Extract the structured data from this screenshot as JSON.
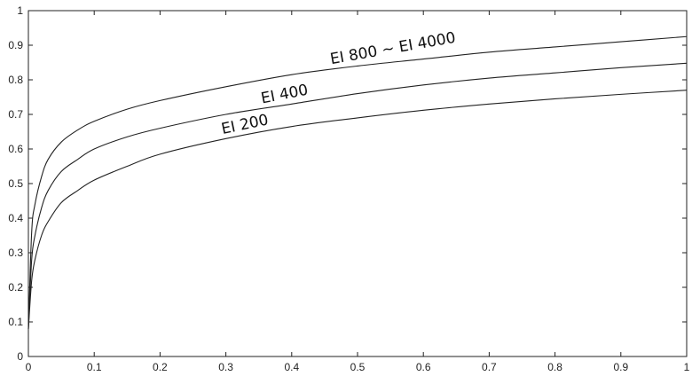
{
  "chart_data": {
    "type": "line",
    "title": "",
    "xlabel": "",
    "ylabel": "",
    "xlim": [
      0,
      1
    ],
    "ylim": [
      0,
      1
    ],
    "grid": false,
    "x_ticks": [
      "0",
      "0.1",
      "0.2",
      "0.3",
      "0.4",
      "0.5",
      "0.6",
      "0.7",
      "0.8",
      "0.9",
      "1"
    ],
    "y_ticks": [
      "0",
      "0.1",
      "0.2",
      "0.3",
      "0.4",
      "0.5",
      "0.6",
      "0.7",
      "0.8",
      "0.9",
      "1"
    ],
    "colors": {
      "line": "#222222",
      "axis": "#222222"
    },
    "series": [
      {
        "name": "EI 800 ~ EI 4000",
        "x": [
          0,
          0.005,
          0.01,
          0.02,
          0.03,
          0.05,
          0.075,
          0.1,
          0.15,
          0.2,
          0.3,
          0.4,
          0.5,
          0.6,
          0.7,
          0.8,
          0.9,
          1.0
        ],
        "y": [
          0.08,
          0.36,
          0.44,
          0.52,
          0.57,
          0.62,
          0.655,
          0.68,
          0.715,
          0.74,
          0.78,
          0.815,
          0.84,
          0.86,
          0.88,
          0.895,
          0.91,
          0.925
        ]
      },
      {
        "name": "EI 400",
        "x": [
          0,
          0.005,
          0.01,
          0.02,
          0.03,
          0.05,
          0.075,
          0.1,
          0.15,
          0.2,
          0.3,
          0.4,
          0.5,
          0.6,
          0.7,
          0.8,
          0.9,
          1.0
        ],
        "y": [
          0.08,
          0.28,
          0.35,
          0.43,
          0.48,
          0.535,
          0.57,
          0.6,
          0.635,
          0.66,
          0.7,
          0.73,
          0.76,
          0.785,
          0.805,
          0.82,
          0.835,
          0.848
        ]
      },
      {
        "name": "EI 200",
        "x": [
          0,
          0.005,
          0.01,
          0.02,
          0.03,
          0.05,
          0.075,
          0.1,
          0.15,
          0.2,
          0.3,
          0.4,
          0.5,
          0.6,
          0.7,
          0.8,
          0.9,
          1.0
        ],
        "y": [
          0.08,
          0.22,
          0.28,
          0.35,
          0.39,
          0.445,
          0.48,
          0.51,
          0.55,
          0.585,
          0.63,
          0.665,
          0.69,
          0.712,
          0.73,
          0.745,
          0.758,
          0.77
        ]
      }
    ],
    "annotations": [
      {
        "text": "EI 800 ~ EI 4000",
        "series": 0,
        "at_x": 0.46,
        "rotate": -10
      },
      {
        "text": "EI 400",
        "series": 1,
        "at_x": 0.355,
        "rotate": -11
      },
      {
        "text": "EI 200",
        "series": 2,
        "at_x": 0.295,
        "rotate": -12
      }
    ]
  }
}
